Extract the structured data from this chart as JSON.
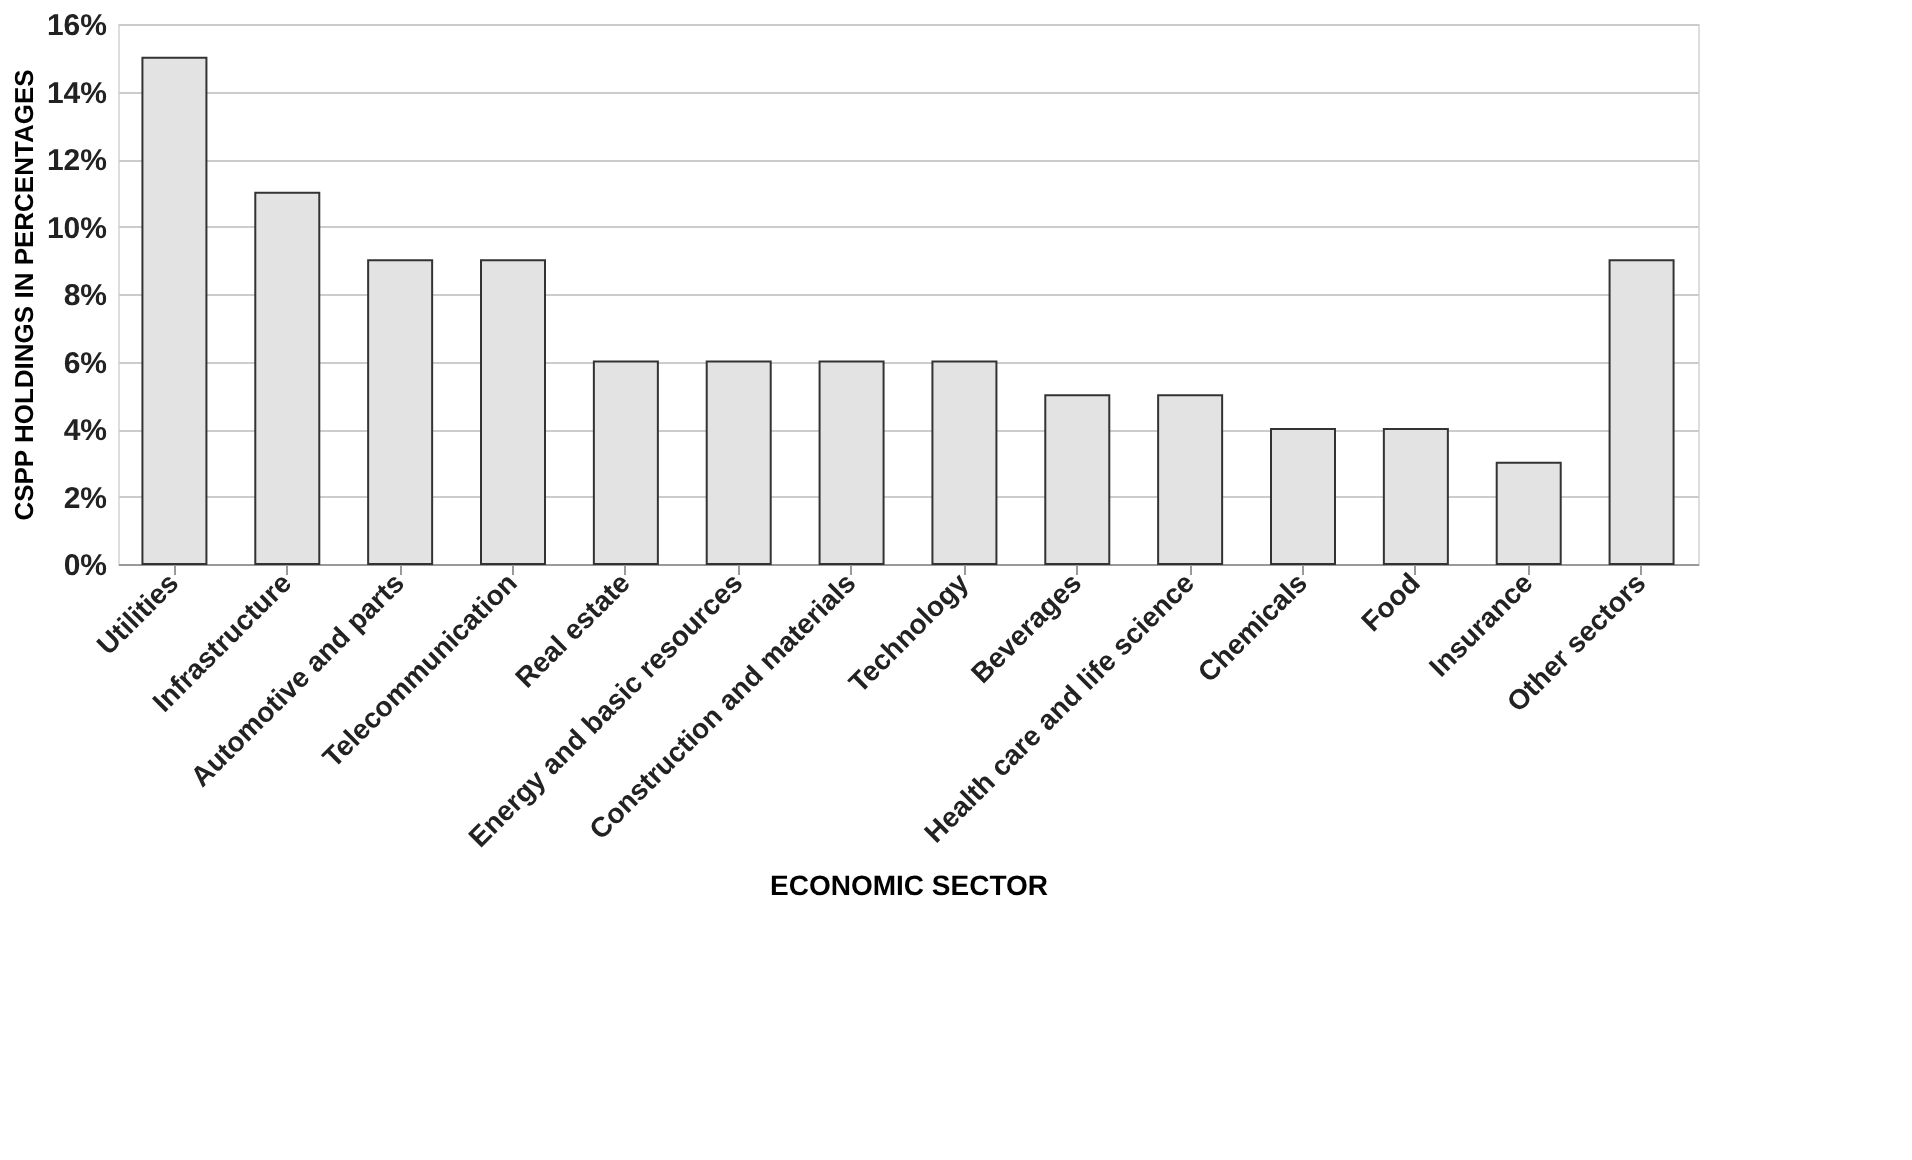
{
  "chart_data": {
    "type": "bar",
    "xlabel": "ECONOMIC SECTOR",
    "ylabel": "CSPP HOLDINGS IN PERCENTAGES",
    "categories": [
      "Utilities",
      "Infrastructure",
      "Automotive and parts",
      "Telecommunication",
      "Real estate",
      "Energy and basic resources",
      "Construction and materials",
      "Technology",
      "Beverages",
      "Health care and life science",
      "Chemicals",
      "Food",
      "Insurance",
      "Other sectors"
    ],
    "values": [
      15,
      11,
      9,
      9,
      6,
      6,
      6,
      6,
      5,
      5,
      4,
      4,
      3,
      9
    ],
    "color": "#e3e3e3",
    "ylim": [
      0,
      16
    ],
    "yticks": [
      {
        "value": 0,
        "label": "0%"
      },
      {
        "value": 2,
        "label": "2%"
      },
      {
        "value": 4,
        "label": "4%"
      },
      {
        "value": 6,
        "label": "6%"
      },
      {
        "value": 8,
        "label": "8%"
      },
      {
        "value": 10,
        "label": "10%"
      },
      {
        "value": 12,
        "label": "12%"
      },
      {
        "value": 14,
        "label": "14%"
      },
      {
        "value": 16,
        "label": "16%"
      }
    ],
    "grid": "y"
  }
}
